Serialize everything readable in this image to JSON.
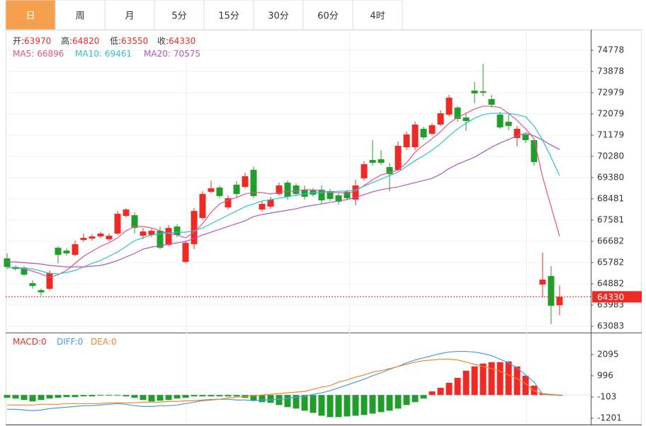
{
  "tabs": [
    "日",
    "周",
    "月",
    "5分",
    "15分",
    "30分",
    "60分",
    "4时"
  ],
  "active_tab": 0,
  "chart_data": [
    {
      "type": "candlestick",
      "ohlc_labels": [
        "开:",
        "高:",
        "低:",
        "收:"
      ],
      "up_color": "#ee2a24",
      "down_color": "#1f9f2a",
      "ylim": [
        62813,
        75558
      ],
      "yticks": [
        74778,
        73878,
        72979,
        72079,
        71179,
        70280,
        69380,
        68481,
        67581,
        66682,
        65782,
        64882,
        63983,
        63083
      ],
      "grid": true,
      "open": [
        65958,
        65598,
        65568,
        64908,
        64608,
        64668,
        66408,
        66288,
        66108,
        66738,
        66798,
        66888,
        66768,
        67008,
        67758,
        67788,
        66918,
        66948,
        67128,
        66528,
        67308,
        65808,
        66558,
        67668,
        68778,
        68958,
        68118,
        69078,
        68988,
        69708,
        68028,
        68148,
        68688,
        69168,
        69048,
        68868,
        68838,
        68868,
        68808,
        68628,
        68778,
        68448,
        69348,
        70128,
        70158,
        69828,
        69708,
        70668,
        70668,
        71448,
        71238,
        71628,
        72048,
        72348,
        71928,
        73068,
        73038,
        72708,
        72048,
        71748,
        71058,
        71208,
        70968,
        64848,
        65208,
        63970
      ],
      "high": [
        66168,
        65658,
        65628,
        65028,
        64668,
        65448,
        66468,
        66378,
        66708,
        67008,
        66978,
        67098,
        67008,
        67968,
        68088,
        67908,
        67248,
        67218,
        67308,
        67368,
        67398,
        66708,
        68088,
        68808,
        69258,
        69048,
        68628,
        69228,
        69588,
        69858,
        68388,
        68568,
        69168,
        69258,
        69138,
        69048,
        68928,
        69048,
        68898,
        68718,
        68868,
        69288,
        70068,
        70968,
        70548,
        70008,
        70908,
        71328,
        71748,
        71538,
        71688,
        72228,
        72888,
        72408,
        72108,
        73428,
        74208,
        72888,
        72168,
        72108,
        71568,
        71298,
        71028,
        66198,
        65628,
        64820
      ],
      "low": [
        65508,
        65448,
        65208,
        64668,
        64368,
        64608,
        65748,
        66078,
        66048,
        66648,
        66708,
        66828,
        66678,
        66948,
        67698,
        67008,
        66768,
        66858,
        66348,
        66468,
        66858,
        65748,
        66348,
        67608,
        68718,
        68508,
        68028,
        68568,
        68928,
        68508,
        67938,
        68058,
        68628,
        68448,
        68598,
        68448,
        68568,
        68268,
        68388,
        68238,
        68418,
        68208,
        69258,
        69888,
        69918,
        68808,
        69648,
        70548,
        70548,
        70998,
        71178,
        71568,
        71958,
        71748,
        71358,
        72528,
        72828,
        72348,
        71448,
        71388,
        70698,
        70848,
        69888,
        64308,
        63168,
        63550
      ],
      "close": [
        65598,
        65508,
        65268,
        64788,
        64518,
        65328,
        66108,
        66168,
        66558,
        66828,
        66888,
        67008,
        66918,
        67848,
        68028,
        67248,
        67098,
        67128,
        66408,
        67248,
        66948,
        66618,
        67968,
        68688,
        68928,
        68598,
        68508,
        68688,
        69438,
        68598,
        68268,
        68448,
        69048,
        68568,
        68688,
        68568,
        68658,
        68418,
        68478,
        68358,
        68508,
        69048,
        69948,
        70008,
        70008,
        69528,
        70728,
        71208,
        71628,
        71088,
        71598,
        72108,
        72768,
        71868,
        71778,
        72948,
        72978,
        72468,
        71508,
        71568,
        71448,
        70968,
        70038,
        65058,
        63948,
        64330
      ],
      "series": [
        {
          "name": "MA5:",
          "color": "#e2538c",
          "values": [
            65568,
            65568,
            65508,
            65418,
            65298,
            65148,
            65268,
            65448,
            65748,
            66048,
            66258,
            66468,
            66618,
            66828,
            67128,
            67308,
            67308,
            67248,
            67128,
            67008,
            66948,
            66828,
            67068,
            67428,
            67908,
            68268,
            68418,
            68538,
            68688,
            68748,
            68748,
            68688,
            68748,
            68808,
            68808,
            68868,
            68868,
            68808,
            68748,
            68748,
            68718,
            68808,
            69048,
            69288,
            69498,
            69588,
            69708,
            70008,
            70458,
            70758,
            71028,
            71328,
            71688,
            71928,
            72108,
            72288,
            72408,
            72408,
            72348,
            72108,
            71808,
            71448,
            71028,
            69408,
            68148,
            66896
          ]
        },
        {
          "name": "MA10:",
          "color": "#2fbfd6",
          "values": [
            65568,
            65568,
            65538,
            65508,
            65418,
            65328,
            65298,
            65358,
            65448,
            65598,
            65748,
            65868,
            66048,
            66228,
            66468,
            66708,
            66828,
            66948,
            67008,
            67038,
            67068,
            67068,
            67128,
            67248,
            67428,
            67608,
            67788,
            67968,
            68148,
            68268,
            68388,
            68448,
            68508,
            68568,
            68628,
            68688,
            68748,
            68748,
            68778,
            68808,
            68808,
            68868,
            69018,
            69168,
            69318,
            69468,
            69618,
            69858,
            70098,
            70308,
            70548,
            70818,
            71148,
            71448,
            71688,
            71898,
            72048,
            72108,
            72108,
            72108,
            72048,
            71958,
            71568,
            70968,
            70248,
            69461
          ]
        },
        {
          "name": "MA20:",
          "color": "#b056c2",
          "values": [
            65808,
            65808,
            65778,
            65748,
            65718,
            65658,
            65628,
            65598,
            65598,
            65598,
            65628,
            65658,
            65748,
            65868,
            66018,
            66168,
            66348,
            66438,
            66498,
            66558,
            66618,
            66678,
            66798,
            66948,
            67068,
            67188,
            67308,
            67428,
            67548,
            67728,
            67818,
            67878,
            67938,
            67998,
            68058,
            68148,
            68208,
            68268,
            68328,
            68388,
            68448,
            68538,
            68658,
            68778,
            68868,
            68928,
            68988,
            69078,
            69168,
            69258,
            69348,
            69528,
            69768,
            69948,
            70098,
            70248,
            70458,
            70668,
            70848,
            70998,
            71148,
            71268,
            71148,
            70968,
            70758,
            70575
          ]
        }
      ]
    },
    {
      "type": "macd",
      "ylim": [
        -1532,
        3157
      ],
      "yticks": [
        2095,
        996,
        -103,
        -1201
      ],
      "name": "MACD:",
      "up_color": "#ee2a24",
      "down_color": "#1f9f2a",
      "values": [
        -148,
        -185,
        -259,
        -333,
        -259,
        -185,
        -148,
        -111,
        -111,
        -74,
        -74,
        -37,
        -37,
        -37,
        -74,
        -148,
        -259,
        -333,
        -296,
        -259,
        -185,
        -148,
        -74,
        -74,
        -74,
        -74,
        -74,
        -74,
        -148,
        -296,
        -370,
        -407,
        -518,
        -629,
        -703,
        -814,
        -925,
        -1073,
        -1147,
        -1147,
        -1110,
        -1073,
        -1036,
        -962,
        -888,
        -814,
        -703,
        -518,
        -370,
        -185,
        185,
        370,
        629,
        888,
        1258,
        1480,
        1628,
        1702,
        1702,
        1739,
        1480,
        999,
        481,
        74,
        37,
        0
      ],
      "series": [
        {
          "name": "DIFF:",
          "color": "#4b9be6",
          "values": [
            -740,
            -740,
            -777,
            -814,
            -777,
            -703,
            -666,
            -629,
            -592,
            -555,
            -555,
            -518,
            -481,
            -444,
            -481,
            -555,
            -592,
            -592,
            -555,
            -555,
            -518,
            -444,
            -370,
            -296,
            -259,
            -222,
            -222,
            -259,
            -259,
            -296,
            -259,
            -259,
            -222,
            -185,
            -111,
            -74,
            37,
            111,
            222,
            370,
            518,
            666,
            814,
            999,
            1147,
            1332,
            1480,
            1665,
            1813,
            1924,
            2035,
            2146,
            2220,
            2257,
            2257,
            2220,
            2146,
            2035,
            1850,
            1665,
            1406,
            1036,
            666,
            37,
            0,
            0
          ]
        },
        {
          "name": "DEA:",
          "color": "#f0862a",
          "values": [
            -518,
            -518,
            -518,
            -518,
            -481,
            -481,
            -481,
            -444,
            -444,
            -444,
            -444,
            -444,
            -407,
            -407,
            -407,
            -407,
            -370,
            -370,
            -370,
            -333,
            -333,
            -296,
            -296,
            -259,
            -222,
            -222,
            -148,
            -111,
            -74,
            -37,
            0,
            37,
            74,
            111,
            148,
            185,
            296,
            407,
            481,
            666,
            777,
            925,
            1036,
            1184,
            1258,
            1369,
            1480,
            1591,
            1702,
            1776,
            1813,
            1850,
            1850,
            1813,
            1702,
            1591,
            1480,
            1369,
            1221,
            1036,
            851,
            592,
            222,
            74,
            37,
            0
          ]
        }
      ]
    }
  ]
}
